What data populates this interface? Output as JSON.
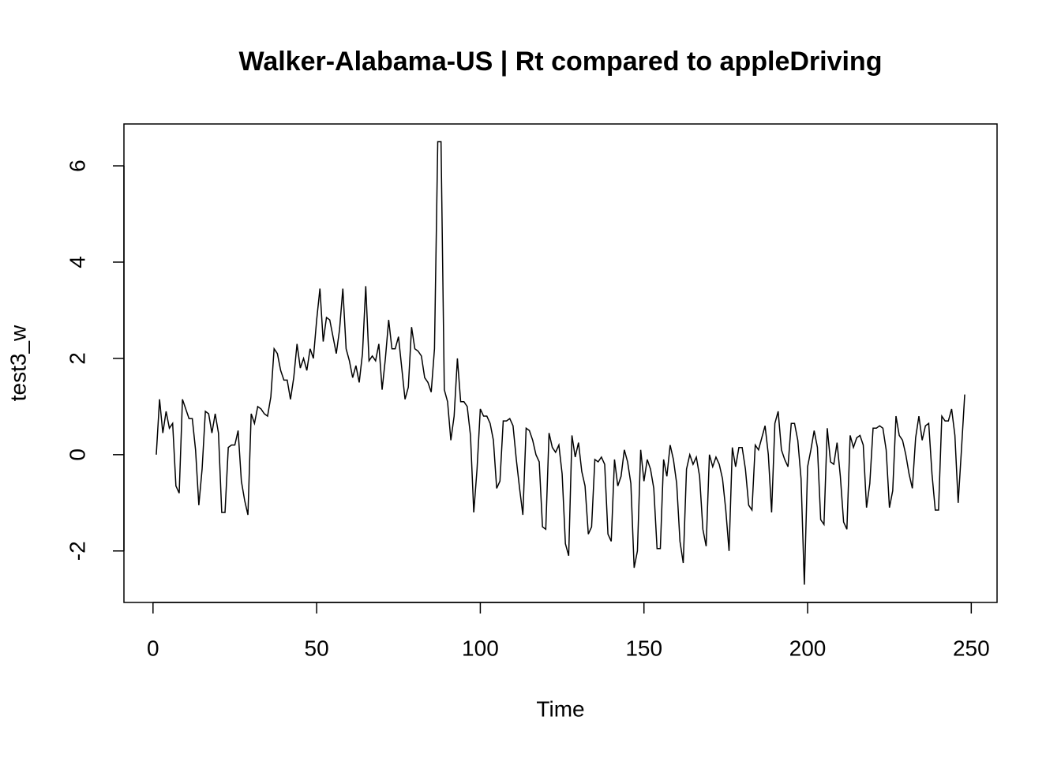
{
  "chart_data": {
    "type": "line",
    "title": "Walker-Alabama-US | Rt compared to appleDriving",
    "x_label": "Time",
    "y_label": "test3_w",
    "x": [
      1,
      2,
      3,
      4,
      5,
      6,
      7,
      8,
      9,
      10,
      11,
      12,
      13,
      14,
      15,
      16,
      17,
      18,
      19,
      20,
      21,
      22,
      23,
      24,
      25,
      26,
      27,
      28,
      29,
      30,
      31,
      32,
      33,
      34,
      35,
      36,
      37,
      38,
      39,
      40,
      41,
      42,
      43,
      44,
      45,
      46,
      47,
      48,
      49,
      50,
      51,
      52,
      53,
      54,
      55,
      56,
      57,
      58,
      59,
      60,
      61,
      62,
      63,
      64,
      65,
      66,
      67,
      68,
      69,
      70,
      71,
      72,
      73,
      74,
      75,
      76,
      77,
      78,
      79,
      80,
      81,
      82,
      83,
      84,
      85,
      86,
      87,
      88,
      89,
      90,
      91,
      92,
      93,
      94,
      95,
      96,
      97,
      98,
      99,
      100,
      101,
      102,
      103,
      104,
      105,
      106,
      107,
      108,
      109,
      110,
      111,
      112,
      113,
      114,
      115,
      116,
      117,
      118,
      119,
      120,
      121,
      122,
      123,
      124,
      125,
      126,
      127,
      128,
      129,
      130,
      131,
      132,
      133,
      134,
      135,
      136,
      137,
      138,
      139,
      140,
      141,
      142,
      143,
      144,
      145,
      146,
      147,
      148,
      149,
      150,
      151,
      152,
      153,
      154,
      155,
      156,
      157,
      158,
      159,
      160,
      161,
      162,
      163,
      164,
      165,
      166,
      167,
      168,
      169,
      170,
      171,
      172,
      173,
      174,
      175,
      176,
      177,
      178,
      179,
      180,
      181,
      182,
      183,
      184,
      185,
      186,
      187,
      188,
      189,
      190,
      191,
      192,
      193,
      194,
      195,
      196,
      197,
      198,
      199,
      200,
      201,
      202,
      203,
      204,
      205,
      206,
      207,
      208,
      209,
      210,
      211,
      212,
      213,
      214,
      215,
      216,
      217,
      218,
      219,
      220,
      221,
      222,
      223,
      224,
      225,
      226,
      227,
      228,
      229,
      230,
      231,
      232,
      233,
      234,
      235,
      236,
      237,
      238,
      239,
      240,
      241,
      242,
      243,
      244,
      245,
      246,
      247,
      248
    ],
    "series": [
      {
        "color": "#000000",
        "values": [
          0,
          1.15,
          0.45,
          0.9,
          0.55,
          0.65,
          -0.65,
          -0.8,
          1.15,
          0.95,
          0.75,
          0.75,
          0.1,
          -1.05,
          -0.3,
          0.9,
          0.85,
          0.45,
          0.85,
          0.45,
          -1.2,
          -1.2,
          0.15,
          0.2,
          0.2,
          0.5,
          -0.55,
          -0.95,
          -1.25,
          0.85,
          0.65,
          1.0,
          0.95,
          0.85,
          0.8,
          1.2,
          2.2,
          2.1,
          1.75,
          1.55,
          1.55,
          1.15,
          1.6,
          2.3,
          1.8,
          2.0,
          1.75,
          2.2,
          2.0,
          2.8,
          3.45,
          2.35,
          2.85,
          2.8,
          2.45,
          2.1,
          2.6,
          3.45,
          2.2,
          1.95,
          1.6,
          1.85,
          1.5,
          2.1,
          3.5,
          1.95,
          2.05,
          1.95,
          2.3,
          1.35,
          2.0,
          2.8,
          2.2,
          2.2,
          2.45,
          1.8,
          1.15,
          1.4,
          2.65,
          2.2,
          2.15,
          2.05,
          1.6,
          1.5,
          1.3,
          2.2,
          6.5,
          6.5,
          1.35,
          1.1,
          0.3,
          0.8,
          2.0,
          1.1,
          1.1,
          1.0,
          0.4,
          -1.2,
          -0.3,
          0.95,
          0.8,
          0.8,
          0.65,
          0.3,
          -0.7,
          -0.55,
          0.7,
          0.7,
          0.75,
          0.6,
          -0.1,
          -0.7,
          -1.25,
          0.55,
          0.5,
          0.3,
          0.0,
          -0.15,
          -1.5,
          -1.55,
          0.45,
          0.15,
          0.05,
          0.2,
          -0.4,
          -1.85,
          -2.1,
          0.4,
          -0.05,
          0.25,
          -0.35,
          -0.65,
          -1.65,
          -1.5,
          -0.1,
          -0.15,
          -0.05,
          -0.2,
          -1.65,
          -1.8,
          -0.1,
          -0.65,
          -0.45,
          0.1,
          -0.15,
          -0.6,
          -2.35,
          -2.0,
          0.1,
          -0.55,
          -0.1,
          -0.3,
          -0.7,
          -1.95,
          -1.95,
          -0.1,
          -0.45,
          0.2,
          -0.1,
          -0.6,
          -1.8,
          -2.25,
          -0.3,
          0.0,
          -0.2,
          -0.05,
          -0.45,
          -1.55,
          -1.9,
          0.0,
          -0.25,
          -0.05,
          -0.2,
          -0.5,
          -1.15,
          -2.0,
          0.15,
          -0.25,
          0.15,
          0.15,
          -0.3,
          -1.05,
          -1.15,
          0.2,
          0.1,
          0.35,
          0.6,
          0.0,
          -1.2,
          0.65,
          0.9,
          0.1,
          -0.1,
          -0.25,
          0.65,
          0.65,
          0.3,
          -0.5,
          -2.7,
          -0.25,
          0.1,
          0.5,
          0.15,
          -1.35,
          -1.45,
          0.55,
          -0.15,
          -0.2,
          0.25,
          -0.45,
          -1.4,
          -1.55,
          0.4,
          0.15,
          0.35,
          0.4,
          0.2,
          -1.1,
          -0.6,
          0.55,
          0.55,
          0.6,
          0.55,
          0.1,
          -1.1,
          -0.75,
          0.8,
          0.4,
          0.3,
          0.0,
          -0.4,
          -0.7,
          0.35,
          0.8,
          0.3,
          0.6,
          0.65,
          -0.4,
          -1.15,
          -1.15,
          0.8,
          0.7,
          0.7,
          0.95,
          0.4,
          -1.0,
          0.1,
          1.25
        ]
      }
    ],
    "xlim": [
      -8.88,
      257.88
    ],
    "ylim": [
      -3.07,
      6.87
    ],
    "xticks": [
      0,
      50,
      100,
      150,
      200,
      250
    ],
    "yticks": [
      -2,
      0,
      2,
      4,
      6
    ],
    "grid": false
  }
}
